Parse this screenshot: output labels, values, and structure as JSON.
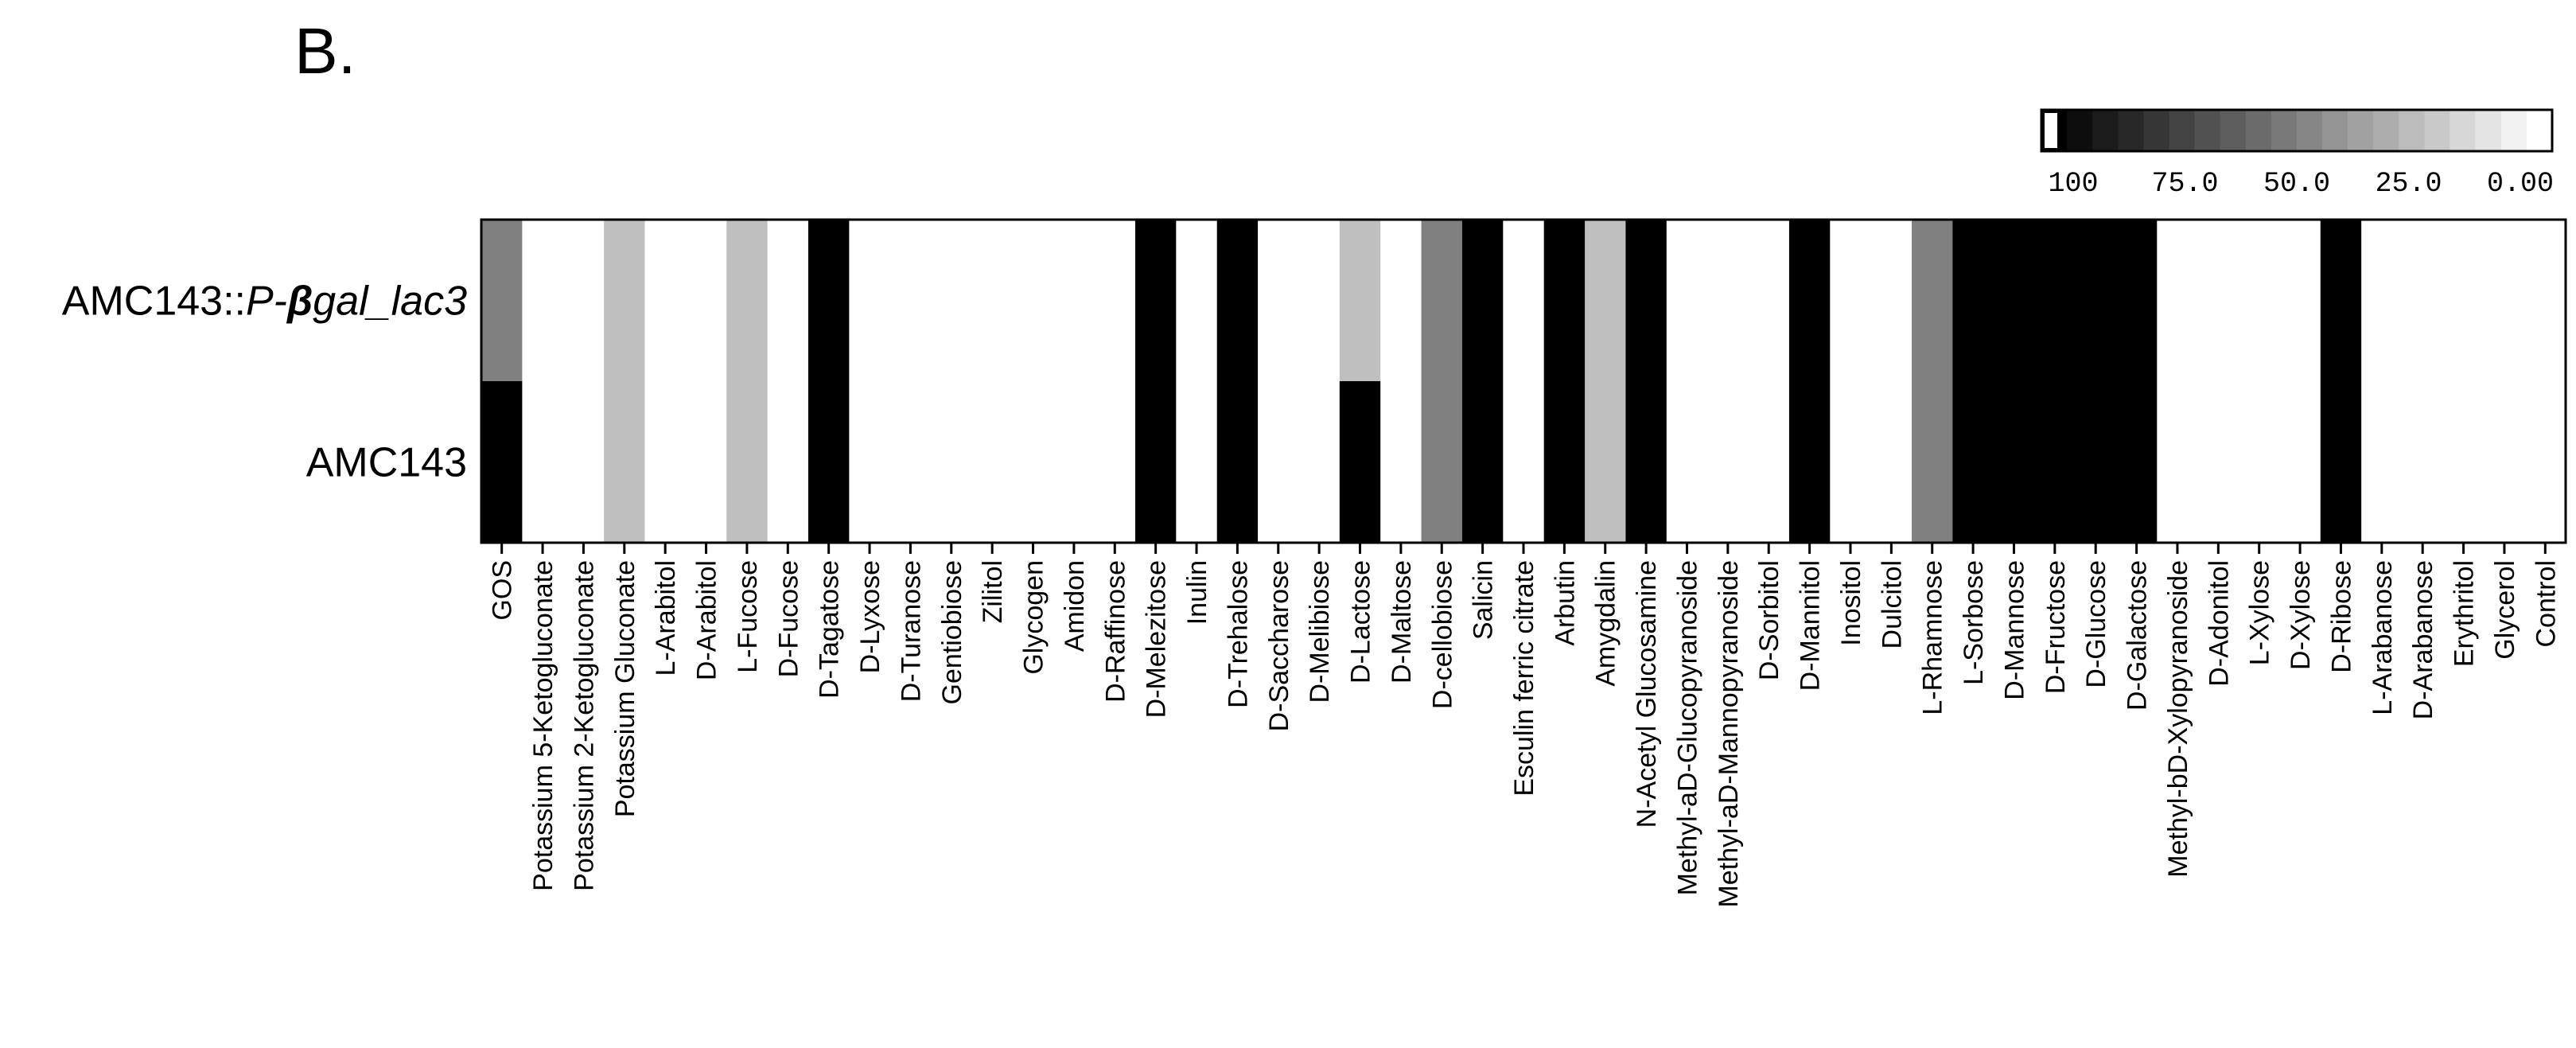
{
  "panel_label": "B.",
  "chart_data": {
    "type": "heatmap",
    "title": "",
    "rows": [
      {
        "prefix": "AMC143::",
        "italic": "P-",
        "bold_italic": "β",
        "suffix": "gal_lac3"
      },
      {
        "prefix": "AMC143",
        "italic": "",
        "bold_italic": "",
        "suffix": ""
      }
    ],
    "categories": [
      "GOS",
      "Potassium 5-Ketogluconate",
      "Potassium 2-Ketogluconate",
      "Potassium Gluconate",
      "L-Arabitol",
      "D-Arabitol",
      "L-Fucose",
      "D-Fucose",
      "D-Tagatose",
      "D-Lyxose",
      "D-Turanose",
      "Gentiobiose",
      "Zilitol",
      "Glycogen",
      "Amidon",
      "D-Raffinose",
      "D-Melezitose",
      "Inulin",
      "D-Trehalose",
      "D-Saccharose",
      "D-Melibiose",
      "D-Lactose",
      "D-Maltose",
      "D-cellobiose",
      "Salicin",
      "Esculin ferric citrate",
      "Arbutin",
      "Amygdalin",
      "N-Acetyl Glucosamine",
      "Methyl-aD-Glucopyranoside",
      "Methyl-aD-Mannopyranoside",
      "D-Sorbitol",
      "D-Mannitol",
      "Inositol",
      "Dulcitol",
      "L-Rhamnose",
      "L-Sorbose",
      "D-Mannose",
      "D-Fructose",
      "D-Glucose",
      "D-Galactose",
      "Methyl-bD-Xylopyranoside",
      "D-Adonitol",
      "L-Xylose",
      "D-Xylose",
      "D-Ribose",
      "L-Arabanose",
      "D-Arabanose",
      "Erythritol",
      "Glycerol",
      "Control"
    ],
    "values": [
      [
        50,
        0,
        0,
        25,
        0,
        0,
        25,
        0,
        100,
        0,
        0,
        0,
        0,
        0,
        0,
        0,
        100,
        0,
        100,
        0,
        0,
        25,
        0,
        50,
        100,
        0,
        100,
        25,
        100,
        0,
        0,
        0,
        100,
        0,
        0,
        50,
        100,
        100,
        100,
        100,
        100,
        0,
        0,
        0,
        0,
        100,
        0,
        0,
        0,
        0,
        0
      ],
      [
        100,
        0,
        0,
        25,
        0,
        0,
        25,
        0,
        100,
        0,
        0,
        0,
        0,
        0,
        0,
        0,
        100,
        0,
        100,
        0,
        0,
        100,
        0,
        50,
        100,
        0,
        100,
        25,
        100,
        0,
        0,
        0,
        100,
        0,
        0,
        50,
        100,
        100,
        100,
        100,
        100,
        0,
        0,
        0,
        0,
        100,
        0,
        0,
        0,
        0,
        0
      ]
    ],
    "colorbar": {
      "range": [
        100,
        0
      ],
      "tick_labels": [
        "100",
        "75.0",
        "50.0",
        "25.0",
        "0.00"
      ],
      "colors": {
        "high": "#000000",
        "low": "#ffffff"
      }
    }
  }
}
